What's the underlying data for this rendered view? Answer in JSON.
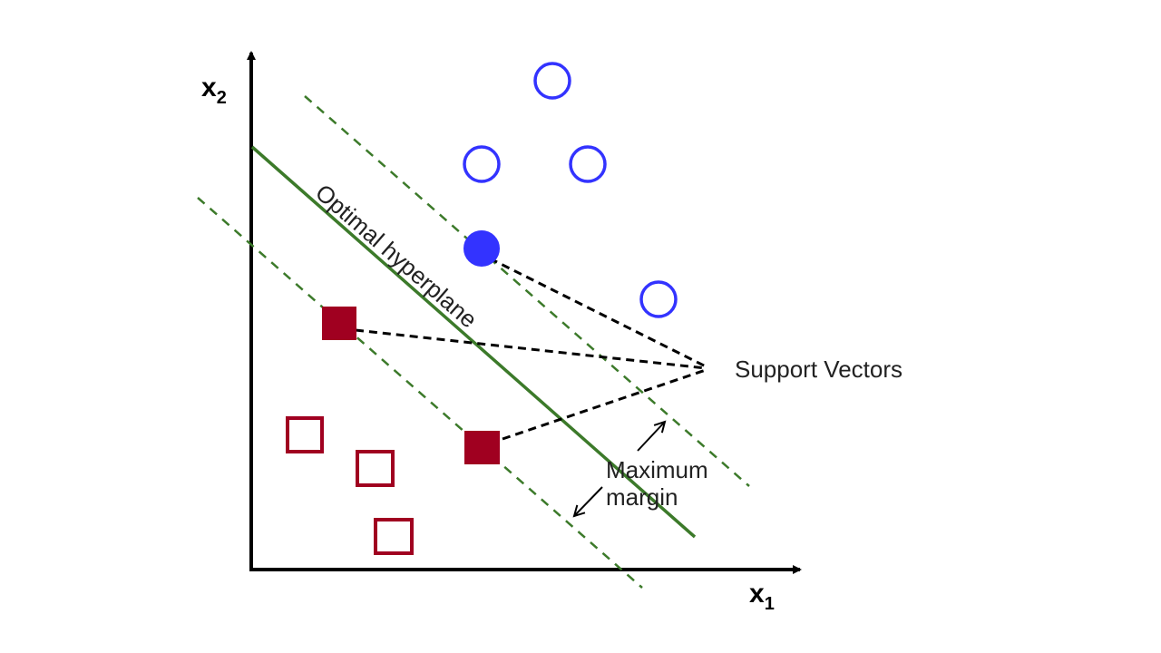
{
  "axes": {
    "x_label": "x",
    "x_subscript": "1",
    "y_label": "x",
    "y_subscript": "2"
  },
  "labels": {
    "hyperplane": "Optimal hyperplane",
    "support_vectors": "Support Vectors",
    "margin_line1": "Maximum",
    "margin_line2": "margin"
  },
  "classes": {
    "positive": {
      "shape": "circle",
      "color": "#3333ff",
      "points": 5,
      "support_vectors": 1
    },
    "negative": {
      "shape": "square",
      "color": "#a00020",
      "points": 5,
      "support_vectors": 2
    }
  },
  "colors": {
    "hyperplane": "#3c7a2a",
    "margin_lines": "#3c7a2a",
    "pointer_lines": "#000000"
  }
}
